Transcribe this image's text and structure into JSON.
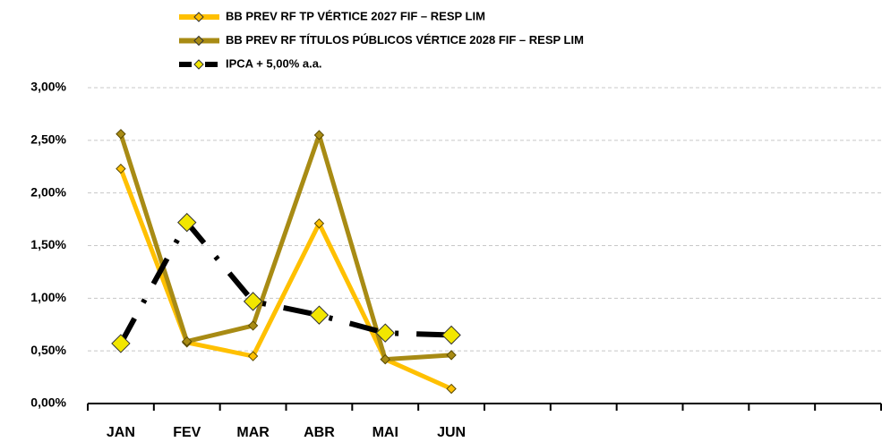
{
  "chart_data": {
    "type": "line",
    "categories": [
      "JAN",
      "FEV",
      "MAR",
      "ABR",
      "MAI",
      "JUN",
      null,
      null,
      null,
      null,
      null,
      null
    ],
    "series": [
      {
        "name": "BB PREV RF TP VÉRTICE 2027 FIF – RESP LIM",
        "color": "#FFC000",
        "marker_color": "#FFC000",
        "dash": false,
        "values": [
          2.23,
          0.58,
          0.45,
          1.71,
          0.42,
          0.14,
          null,
          null,
          null,
          null,
          null,
          null
        ]
      },
      {
        "name": "BB PREV RF TÍTULOS PÚBLICOS VÉRTICE 2028 FIF – RESP LIM",
        "color": "#A88B14",
        "marker_color": "#A88B14",
        "dash": false,
        "values": [
          2.56,
          0.59,
          0.74,
          2.55,
          0.42,
          0.46,
          null,
          null,
          null,
          null,
          null,
          null
        ]
      },
      {
        "name": "IPCA + 5,00% a.a.",
        "color": "#000000",
        "marker_color": "#F2E600",
        "dash": true,
        "values": [
          0.57,
          1.72,
          0.97,
          0.84,
          0.67,
          0.65,
          null,
          null,
          null,
          null,
          null,
          null
        ]
      }
    ],
    "ylim": [
      0,
      3
    ],
    "yticks": [
      {
        "value": 0,
        "label": "0,00%"
      },
      {
        "value": 0.5,
        "label": "0,50%"
      },
      {
        "value": 1,
        "label": "1,00%"
      },
      {
        "value": 1.5,
        "label": "1,50%"
      },
      {
        "value": 2,
        "label": "2,00%"
      },
      {
        "value": 2.5,
        "label": "2,50%"
      },
      {
        "value": 3,
        "label": "3,00%"
      }
    ],
    "grid": true,
    "legend": "top"
  }
}
